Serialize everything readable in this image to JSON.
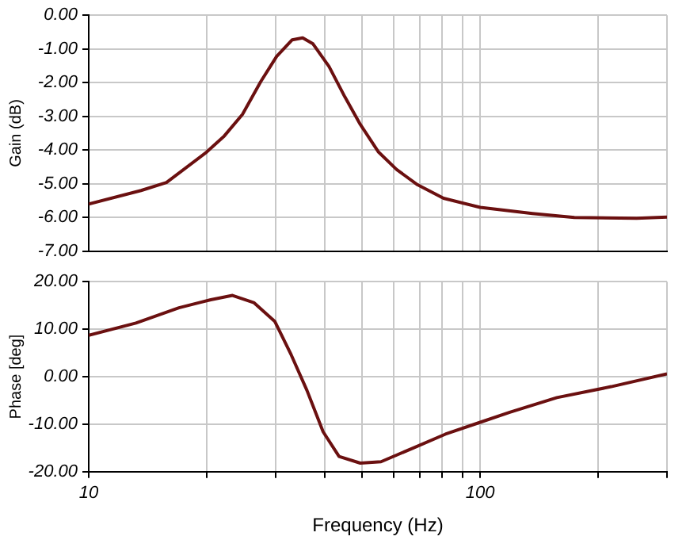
{
  "chart_data": [
    {
      "type": "line",
      "ylabel": "Gain (dB)",
      "log": "x",
      "grid": true,
      "legend": false,
      "marker": "none",
      "line_style": "solid",
      "tick_labels": "y",
      "xlim": [
        10,
        300
      ],
      "xticks": [
        {
          "value": 10,
          "label": null
        },
        {
          "value": 20,
          "label": null
        },
        {
          "value": 30,
          "label": null
        },
        {
          "value": 40,
          "label": null
        },
        {
          "value": 50,
          "label": null
        },
        {
          "value": 60,
          "label": null
        },
        {
          "value": 70,
          "label": null
        },
        {
          "value": 80,
          "label": null
        },
        {
          "value": 90,
          "label": null
        },
        {
          "value": 100,
          "label": null
        },
        {
          "value": 200,
          "label": null
        },
        {
          "value": 300,
          "label": null
        }
      ],
      "ylim": [
        -7,
        0
      ],
      "yticks": [
        {
          "value": -7,
          "label": "-7.00"
        },
        {
          "value": -6,
          "label": "-6.00"
        },
        {
          "value": -5,
          "label": "-5.00"
        },
        {
          "value": -4,
          "label": "-4.00"
        },
        {
          "value": -3,
          "label": "-3.00"
        },
        {
          "value": -2,
          "label": "-2.00"
        },
        {
          "value": -1,
          "label": "-1.00"
        },
        {
          "value": 0,
          "label": "0.00"
        }
      ],
      "x": [
        10,
        13.6,
        15.8,
        20,
        22.2,
        24.7,
        27.5,
        30.2,
        33.1,
        35.2,
        37.4,
        41.1,
        45.1,
        49.4,
        55,
        61.2,
        69.2,
        80.6,
        100,
        136,
        174,
        251,
        300
      ],
      "series": [
        {
          "color": "#6b1010",
          "values": [
            -5.6,
            -5.2,
            -4.96,
            -4.06,
            -3.58,
            -2.94,
            -1.97,
            -1.22,
            -0.73,
            -0.67,
            -0.85,
            -1.52,
            -2.42,
            -3.24,
            -4.06,
            -4.58,
            -5.03,
            -5.43,
            -5.7,
            -5.88,
            -6.0,
            -6.02,
            -5.99
          ]
        }
      ]
    },
    {
      "type": "line",
      "xlabel": "Frequency (Hz)",
      "ylabel": "Phase [deg]",
      "log": "x",
      "grid": true,
      "legend": false,
      "marker": "none",
      "line_style": "solid",
      "xlim": [
        10,
        300
      ],
      "xticks": [
        10,
        {
          "value": 20,
          "label": null
        },
        {
          "value": 30,
          "label": null
        },
        {
          "value": 40,
          "label": null
        },
        {
          "value": 50,
          "label": null
        },
        {
          "value": 60,
          "label": null
        },
        {
          "value": 70,
          "label": null
        },
        {
          "value": 80,
          "label": null
        },
        {
          "value": 90,
          "label": null
        },
        100,
        {
          "value": 200,
          "label": null
        },
        {
          "value": 300,
          "label": null
        }
      ],
      "ylim": [
        -20,
        20
      ],
      "yticks": [
        {
          "value": -20,
          "label": "-20.00"
        },
        {
          "value": -10,
          "label": "-10.00"
        },
        {
          "value": 0,
          "label": "0.00"
        },
        {
          "value": 10,
          "label": "10.00"
        },
        {
          "value": 20,
          "label": "20.00"
        }
      ],
      "x": [
        10,
        13.2,
        17,
        20.5,
        23.3,
        26.4,
        29.9,
        32.9,
        36.1,
        39.7,
        43.6,
        49.4,
        55.8,
        67.5,
        81.5,
        100,
        119,
        157,
        216,
        300
      ],
      "series": [
        {
          "color": "#6b1010",
          "values": [
            8.7,
            11.3,
            14.5,
            16.2,
            17.1,
            15.6,
            11.6,
            4.6,
            -2.9,
            -11.6,
            -16.8,
            -18.2,
            -17.9,
            -15,
            -12.1,
            -9.6,
            -7.5,
            -4.4,
            -2.1,
            0.6
          ]
        }
      ]
    }
  ]
}
